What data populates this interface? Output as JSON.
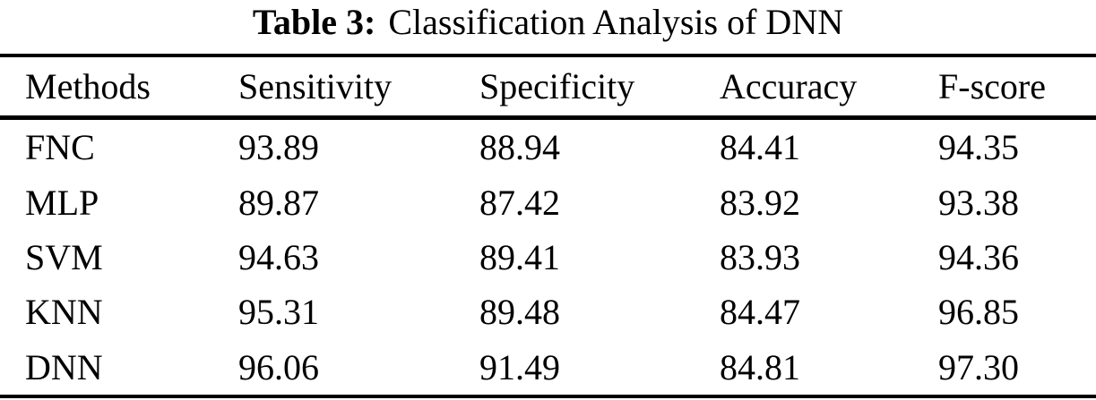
{
  "page": {
    "background_color": "#ffffff",
    "text_color": "#000000"
  },
  "caption": {
    "label": "Table 3:",
    "text": "Classification Analysis of DNN"
  },
  "table": {
    "columns": [
      "Methods",
      "Sensitivity",
      "Specificity",
      "Accuracy",
      "F-score"
    ],
    "rows": [
      {
        "cells": [
          "FNC",
          "93.89",
          "88.94",
          "84.41",
          "94.35"
        ]
      },
      {
        "cells": [
          "MLP",
          "89.87",
          "87.42",
          "83.92",
          "93.38"
        ]
      },
      {
        "cells": [
          "SVM",
          "94.63",
          "89.41",
          "83.93",
          "94.36"
        ]
      },
      {
        "cells": [
          "KNN",
          "95.31",
          "89.48",
          "84.47",
          "96.85"
        ]
      },
      {
        "cells": [
          "DNN",
          "96.06",
          "91.49",
          "84.81",
          "97.30"
        ]
      }
    ]
  },
  "chart_data": {
    "type": "table",
    "title": "Table 3: Classification Analysis of DNN",
    "columns": [
      "Methods",
      "Sensitivity",
      "Specificity",
      "Accuracy",
      "F-score"
    ],
    "rows": [
      [
        "FNC",
        93.89,
        88.94,
        84.41,
        94.35
      ],
      [
        "MLP",
        89.87,
        87.42,
        83.92,
        93.38
      ],
      [
        "SVM",
        94.63,
        89.41,
        83.93,
        94.36
      ],
      [
        "KNN",
        95.31,
        89.48,
        84.47,
        96.85
      ],
      [
        "DNN",
        96.06,
        91.49,
        84.81,
        97.3
      ]
    ]
  }
}
